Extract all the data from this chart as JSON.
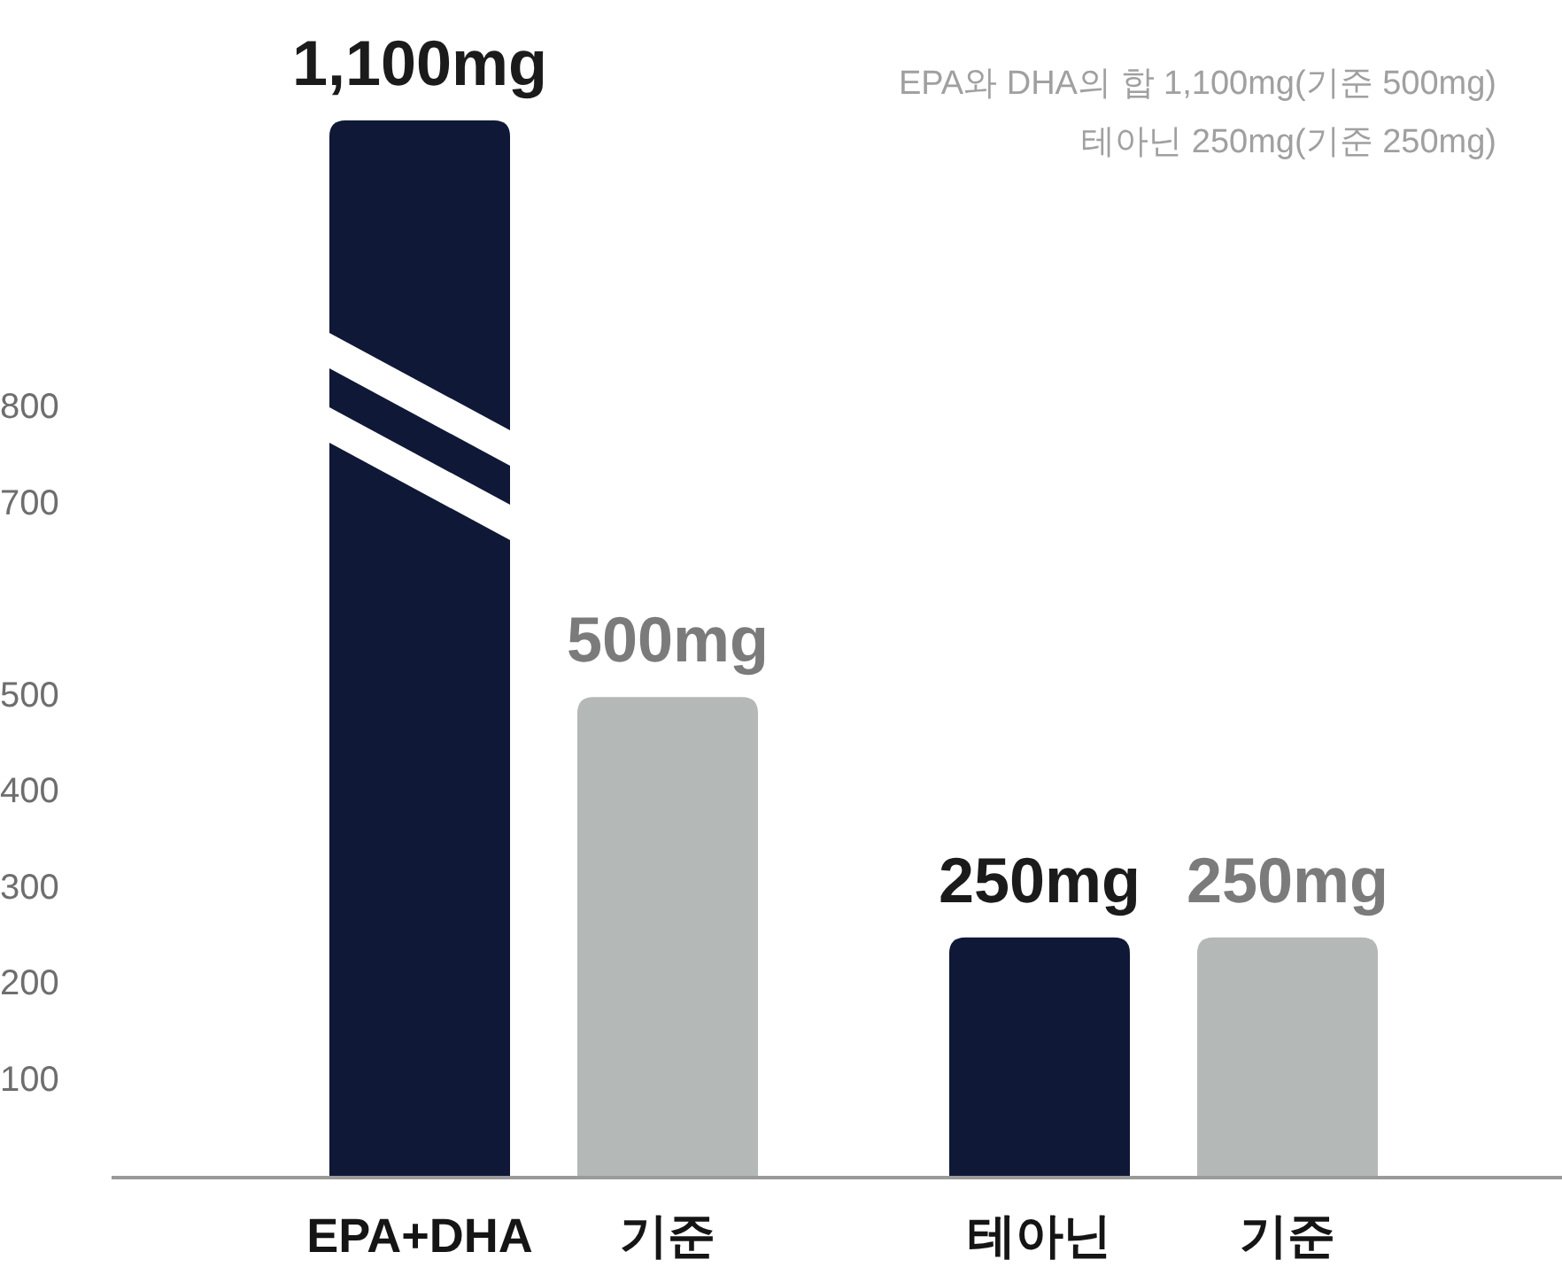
{
  "chart_data": {
    "type": "bar",
    "categories": [
      "EPA+DHA",
      "기준",
      "테아닌",
      "기준"
    ],
    "values": [
      1100,
      500,
      250,
      250
    ],
    "colors": [
      "#0f1836",
      "#b4b8b6",
      "#0f1836",
      "#b4b8b6"
    ],
    "value_labels": [
      "1,100mg",
      "500mg",
      "250mg",
      "250mg"
    ],
    "ylim": [
      0,
      1100
    ],
    "yticks": [
      100,
      200,
      300,
      400,
      500,
      700,
      800
    ],
    "annotations": [
      "EPA와 DHA의 합 1,100mg(기준 500mg)",
      "테아닌 250mg(기준 250mg)"
    ]
  }
}
